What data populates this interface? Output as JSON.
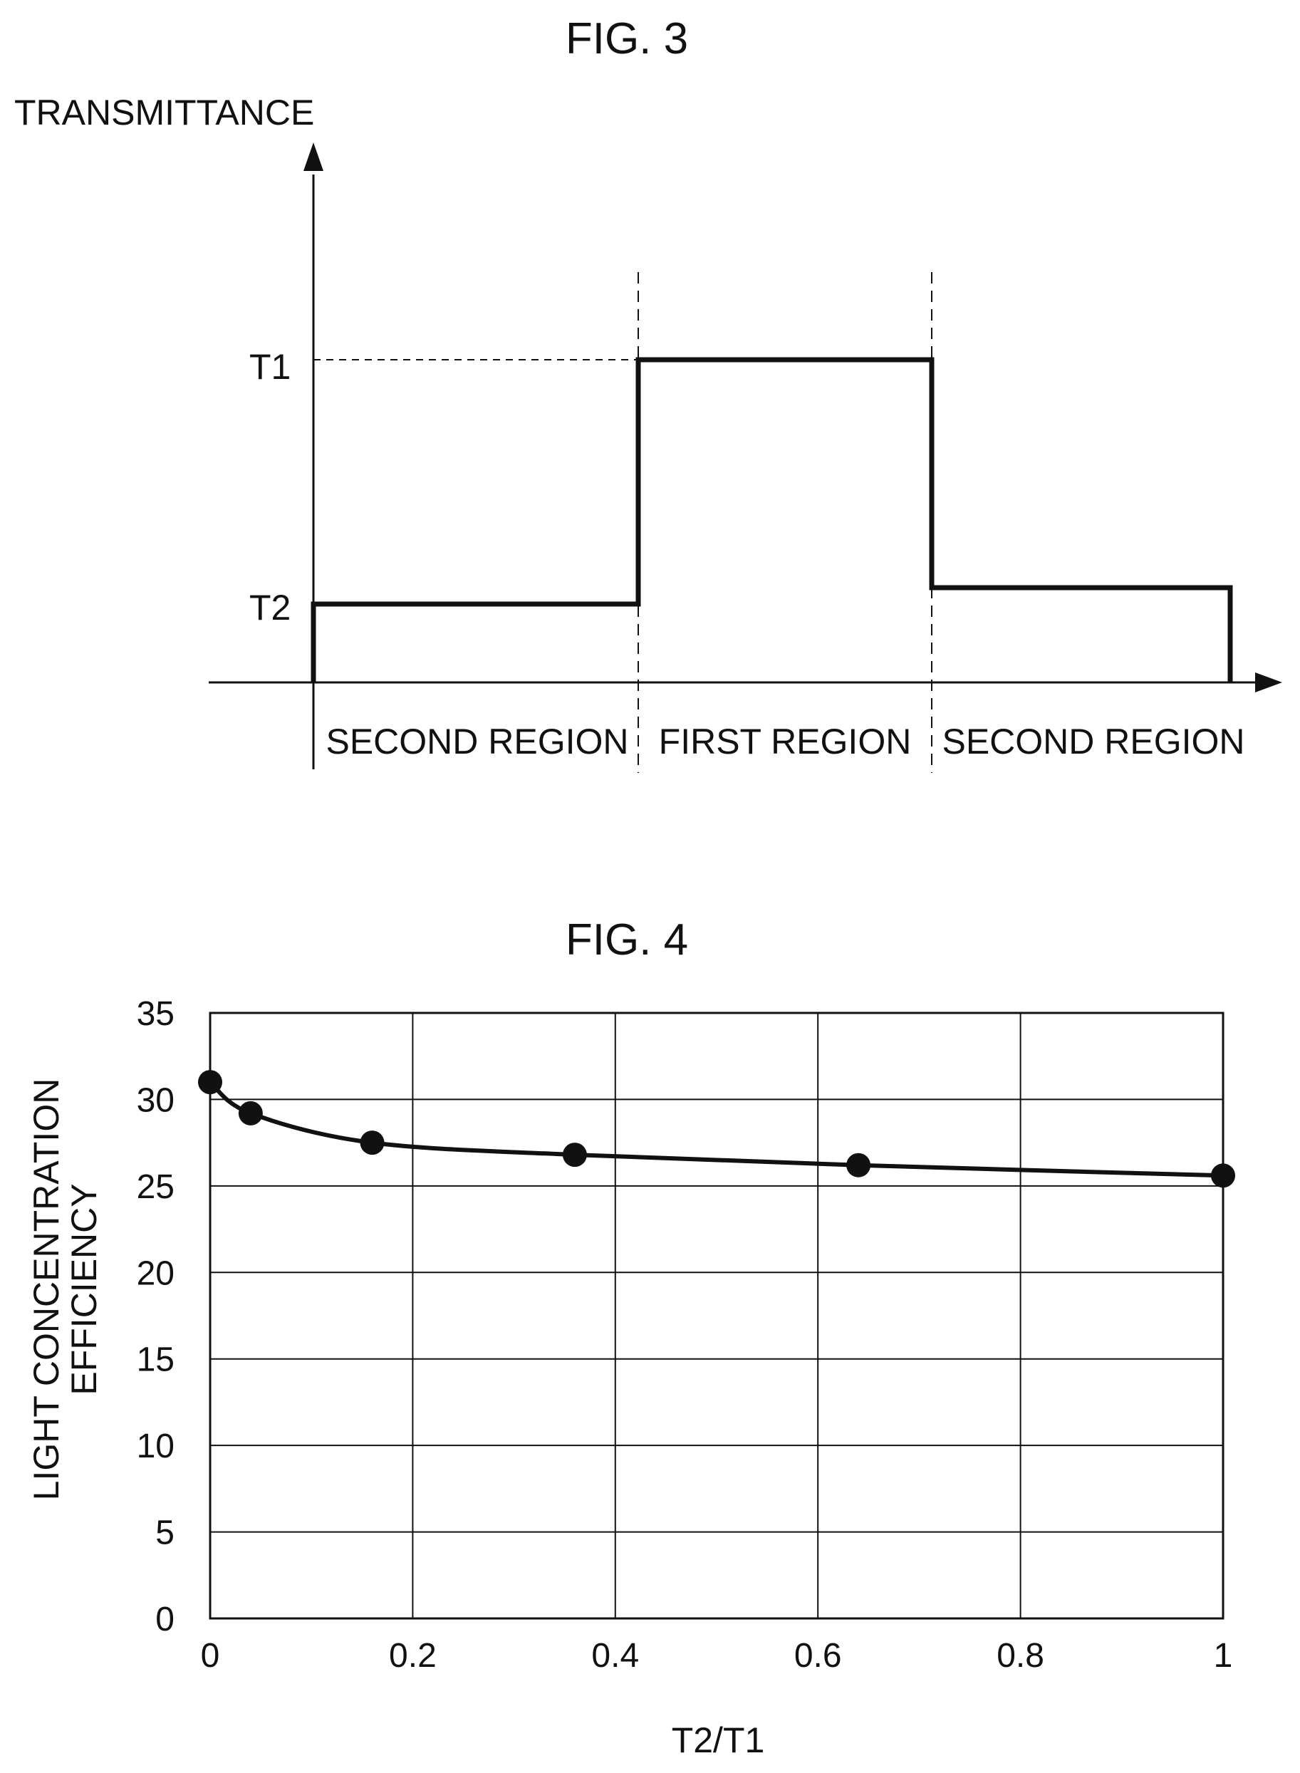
{
  "colors": {
    "ink": "#111111",
    "background": "#ffffff"
  },
  "fig3": {
    "title": "FIG. 3",
    "y_axis_label": "TRANSMITTANCE",
    "level_labels": {
      "t1": "T1",
      "t2": "T2"
    },
    "region_labels": {
      "left": "SECOND REGION",
      "middle": "FIRST REGION",
      "right": "SECOND REGION"
    },
    "profile": {
      "left_region_level": "T2",
      "middle_region_level": "T1",
      "right_region_level": "T2"
    }
  },
  "fig4": {
    "title": "FIG. 4"
  },
  "chart_data": {
    "type": "line",
    "title": "FIG. 4",
    "xlabel": "T2/T1",
    "ylabel_lines": [
      "LIGHT CONCENTRATION",
      "EFFICIENCY"
    ],
    "xlim": [
      0,
      1
    ],
    "ylim": [
      0,
      35
    ],
    "x_ticks": [
      0,
      0.2,
      0.4,
      0.6,
      0.8,
      1
    ],
    "x_tick_labels": [
      "0",
      "0.2",
      "0.4",
      "0.6",
      "0.8",
      "1"
    ],
    "y_ticks": [
      0,
      5,
      10,
      15,
      20,
      25,
      30,
      35
    ],
    "y_tick_labels": [
      "0",
      "5",
      "10",
      "15",
      "20",
      "25",
      "30",
      "35"
    ],
    "grid": true,
    "series": [
      {
        "x": [
          0,
          0.04,
          0.16,
          0.36,
          0.64,
          1
        ],
        "y": [
          31.0,
          29.2,
          27.5,
          26.8,
          26.2,
          25.6
        ]
      }
    ]
  }
}
